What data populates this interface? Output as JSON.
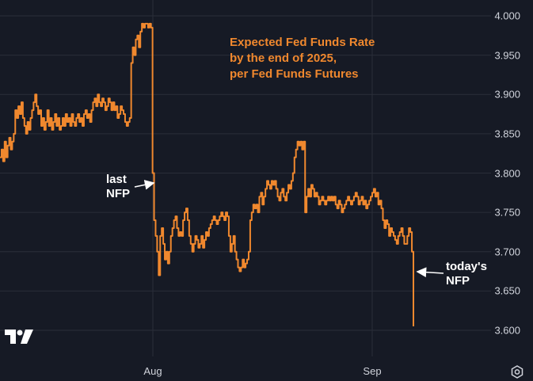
{
  "chart_data": {
    "type": "line",
    "title_lines": [
      "Expected Fed Funds Rate",
      "by the end of 2025,",
      "per Fed Funds Futures"
    ],
    "ylim": [
      3.6,
      4.0
    ],
    "yticks": [
      "4.000",
      "3.950",
      "3.900",
      "3.850",
      "3.800",
      "3.750",
      "3.700",
      "3.650",
      "3.600"
    ],
    "xtick_labels": [
      "Aug",
      "Sep"
    ],
    "line_color": "#f0882e",
    "series": [
      {
        "values": [
          3.82,
          3.83,
          3.815,
          3.84,
          3.82,
          3.835,
          3.845,
          3.83,
          3.84,
          3.85,
          3.88,
          3.87,
          3.885,
          3.875,
          3.89,
          3.87,
          3.86,
          3.85,
          3.865,
          3.855,
          3.87,
          3.88,
          3.89,
          3.9,
          3.885,
          3.875,
          3.88,
          3.86,
          3.87,
          3.855,
          3.865,
          3.88,
          3.86,
          3.87,
          3.855,
          3.865,
          3.875,
          3.86,
          3.87,
          3.855,
          3.86,
          3.87,
          3.86,
          3.875,
          3.865,
          3.87,
          3.86,
          3.875,
          3.865,
          3.86,
          3.87,
          3.875,
          3.865,
          3.87,
          3.86,
          3.875,
          3.88,
          3.87,
          3.875,
          3.865,
          3.88,
          3.89,
          3.895,
          3.885,
          3.9,
          3.89,
          3.885,
          3.895,
          3.89,
          3.88,
          3.885,
          3.895,
          3.89,
          3.88,
          3.89,
          3.88,
          3.885,
          3.87,
          3.875,
          3.885,
          3.88,
          3.875,
          3.865,
          3.86,
          3.865,
          3.87,
          3.94,
          3.96,
          3.95,
          3.97,
          3.975,
          3.96,
          3.98,
          3.99,
          3.985,
          3.99,
          3.99,
          3.985,
          3.99,
          3.985,
          3.8,
          3.74,
          3.72,
          3.7,
          3.67,
          3.72,
          3.73,
          3.71,
          3.69,
          3.7,
          3.685,
          3.7,
          3.72,
          3.73,
          3.74,
          3.745,
          3.73,
          3.72,
          3.725,
          3.72,
          3.74,
          3.75,
          3.755,
          3.74,
          3.72,
          3.71,
          3.7,
          3.71,
          3.72,
          3.715,
          3.705,
          3.71,
          3.72,
          3.705,
          3.715,
          3.725,
          3.72,
          3.73,
          3.735,
          3.74,
          3.745,
          3.74,
          3.735,
          3.74,
          3.745,
          3.75,
          3.745,
          3.74,
          3.75,
          3.745,
          3.72,
          3.7,
          3.71,
          3.72,
          3.7,
          3.69,
          3.68,
          3.675,
          3.68,
          3.69,
          3.68,
          3.685,
          3.69,
          3.7,
          3.74,
          3.75,
          3.76,
          3.755,
          3.76,
          3.75,
          3.77,
          3.775,
          3.76,
          3.77,
          3.78,
          3.79,
          3.785,
          3.78,
          3.79,
          3.785,
          3.79,
          3.78,
          3.77,
          3.765,
          3.775,
          3.78,
          3.77,
          3.765,
          3.775,
          3.785,
          3.78,
          3.79,
          3.8,
          3.82,
          3.83,
          3.84,
          3.835,
          3.84,
          3.83,
          3.84,
          3.75,
          3.77,
          3.78,
          3.77,
          3.785,
          3.78,
          3.77,
          3.775,
          3.77,
          3.76,
          3.765,
          3.77,
          3.765,
          3.76,
          3.765,
          3.77,
          3.765,
          3.77,
          3.765,
          3.77,
          3.76,
          3.755,
          3.765,
          3.76,
          3.75,
          3.755,
          3.76,
          3.765,
          3.77,
          3.765,
          3.76,
          3.765,
          3.77,
          3.775,
          3.77,
          3.76,
          3.765,
          3.77,
          3.76,
          3.765,
          3.755,
          3.76,
          3.765,
          3.77,
          3.775,
          3.78,
          3.77,
          3.775,
          3.76,
          3.765,
          3.755,
          3.74,
          3.73,
          3.74,
          3.735,
          3.72,
          3.73,
          3.725,
          3.72,
          3.715,
          3.71,
          3.72,
          3.725,
          3.73,
          3.72,
          3.71,
          3.71,
          3.72,
          3.73,
          3.725,
          3.7,
          3.605
        ]
      }
    ]
  },
  "annotations": {
    "last_nfp_line1": "last",
    "last_nfp_line2": "NFP",
    "today_nfp_line1": "today's",
    "today_nfp_line2": "NFP"
  },
  "icons": {
    "logo": "tradingview-logo-icon",
    "settings": "settings-gear-icon"
  },
  "colors": {
    "background": "#161a25",
    "grid": "#2a2e39",
    "text": "#d1d4dc",
    "line": "#f0882e",
    "annotation": "#ffffff"
  }
}
